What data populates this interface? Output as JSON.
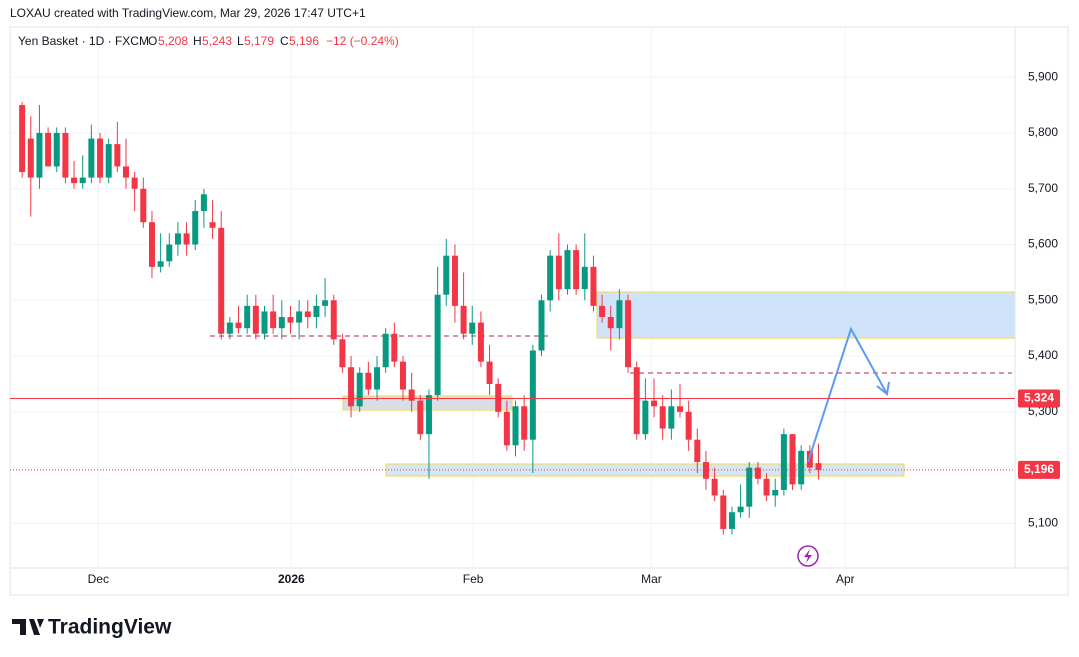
{
  "header": {
    "credit": "LOXAU created with TradingView.com, Mar 29, 2026 17:47 UTC+1"
  },
  "footer": {
    "brand": "TradingView"
  },
  "chart_data": {
    "type": "candlestick",
    "legend": {
      "symbol": "Yen Basket · 1D · FXCM",
      "open_label": "O",
      "open": "5,208",
      "high_label": "H",
      "high": "5,243",
      "low_label": "L",
      "low": "5,179",
      "close_label": "C",
      "close": "5,196",
      "change": "−12 (−0.24%)"
    },
    "up_color": "#089981",
    "down_color": "#f23645",
    "ohlc": [
      [
        5850,
        5855,
        5720,
        5730
      ],
      [
        5790,
        5830,
        5650,
        5720
      ],
      [
        5720,
        5850,
        5700,
        5800
      ],
      [
        5800,
        5810,
        5740,
        5740
      ],
      [
        5740,
        5810,
        5730,
        5800
      ],
      [
        5800,
        5810,
        5710,
        5720
      ],
      [
        5720,
        5750,
        5700,
        5710
      ],
      [
        5710,
        5760,
        5700,
        5720
      ],
      [
        5720,
        5815,
        5710,
        5790
      ],
      [
        5790,
        5800,
        5710,
        5720
      ],
      [
        5720,
        5790,
        5710,
        5780
      ],
      [
        5780,
        5820,
        5730,
        5740
      ],
      [
        5740,
        5790,
        5700,
        5720
      ],
      [
        5720,
        5730,
        5660,
        5700
      ],
      [
        5700,
        5720,
        5630,
        5640
      ],
      [
        5640,
        5660,
        5540,
        5560
      ],
      [
        5560,
        5620,
        5550,
        5570
      ],
      [
        5570,
        5620,
        5560,
        5600
      ],
      [
        5600,
        5640,
        5580,
        5620
      ],
      [
        5620,
        5640,
        5580,
        5600
      ],
      [
        5600,
        5680,
        5590,
        5660
      ],
      [
        5660,
        5700,
        5630,
        5690
      ],
      [
        5640,
        5680,
        5610,
        5630
      ],
      [
        5630,
        5660,
        5430,
        5440
      ],
      [
        5440,
        5470,
        5430,
        5460
      ],
      [
        5460,
        5490,
        5440,
        5450
      ],
      [
        5450,
        5510,
        5440,
        5490
      ],
      [
        5490,
        5510,
        5430,
        5440
      ],
      [
        5440,
        5490,
        5430,
        5480
      ],
      [
        5480,
        5510,
        5440,
        5450
      ],
      [
        5450,
        5500,
        5430,
        5470
      ],
      [
        5470,
        5490,
        5440,
        5460
      ],
      [
        5460,
        5500,
        5430,
        5480
      ],
      [
        5480,
        5500,
        5450,
        5470
      ],
      [
        5470,
        5510,
        5450,
        5490
      ],
      [
        5490,
        5540,
        5470,
        5500
      ],
      [
        5500,
        5510,
        5420,
        5430
      ],
      [
        5430,
        5440,
        5370,
        5380
      ],
      [
        5380,
        5400,
        5290,
        5310
      ],
      [
        5310,
        5380,
        5300,
        5370
      ],
      [
        5370,
        5390,
        5330,
        5340
      ],
      [
        5340,
        5400,
        5320,
        5380
      ],
      [
        5380,
        5450,
        5370,
        5440
      ],
      [
        5440,
        5460,
        5380,
        5390
      ],
      [
        5390,
        5400,
        5320,
        5340
      ],
      [
        5340,
        5370,
        5300,
        5320
      ],
      [
        5320,
        5330,
        5250,
        5260
      ],
      [
        5260,
        5340,
        5180,
        5330
      ],
      [
        5330,
        5560,
        5320,
        5510
      ],
      [
        5510,
        5610,
        5490,
        5580
      ],
      [
        5580,
        5600,
        5460,
        5490
      ],
      [
        5490,
        5550,
        5430,
        5440
      ],
      [
        5440,
        5490,
        5420,
        5460
      ],
      [
        5460,
        5480,
        5380,
        5390
      ],
      [
        5390,
        5420,
        5330,
        5350
      ],
      [
        5350,
        5360,
        5290,
        5300
      ],
      [
        5300,
        5320,
        5230,
        5240
      ],
      [
        5240,
        5320,
        5220,
        5310
      ],
      [
        5310,
        5330,
        5230,
        5250
      ],
      [
        5250,
        5420,
        5190,
        5410
      ],
      [
        5410,
        5510,
        5400,
        5500
      ],
      [
        5500,
        5590,
        5480,
        5580
      ],
      [
        5580,
        5620,
        5500,
        5520
      ],
      [
        5520,
        5600,
        5510,
        5590
      ],
      [
        5590,
        5600,
        5510,
        5520
      ],
      [
        5520,
        5620,
        5500,
        5560
      ],
      [
        5560,
        5580,
        5480,
        5490
      ],
      [
        5490,
        5510,
        5460,
        5470
      ],
      [
        5470,
        5490,
        5410,
        5450
      ],
      [
        5450,
        5520,
        5430,
        5500
      ],
      [
        5500,
        5510,
        5370,
        5380
      ],
      [
        5380,
        5390,
        5250,
        5260
      ],
      [
        5260,
        5360,
        5250,
        5320
      ],
      [
        5320,
        5360,
        5290,
        5310
      ],
      [
        5310,
        5330,
        5250,
        5270
      ],
      [
        5270,
        5340,
        5250,
        5310
      ],
      [
        5310,
        5350,
        5290,
        5300
      ],
      [
        5300,
        5320,
        5230,
        5250
      ],
      [
        5250,
        5270,
        5190,
        5210
      ],
      [
        5210,
        5230,
        5160,
        5180
      ],
      [
        5180,
        5200,
        5140,
        5150
      ],
      [
        5150,
        5160,
        5080,
        5090
      ],
      [
        5090,
        5130,
        5080,
        5120
      ],
      [
        5120,
        5170,
        5110,
        5130
      ],
      [
        5130,
        5210,
        5110,
        5200
      ],
      [
        5200,
        5210,
        5170,
        5180
      ],
      [
        5180,
        5190,
        5140,
        5150
      ],
      [
        5150,
        5180,
        5130,
        5160
      ],
      [
        5160,
        5270,
        5150,
        5260
      ],
      [
        5260,
        5260,
        5160,
        5170
      ],
      [
        5170,
        5240,
        5160,
        5230
      ],
      [
        5230,
        5240,
        5190,
        5200
      ],
      [
        5208,
        5243,
        5179,
        5196
      ]
    ],
    "xlim": [
      -1.4,
      114.7
    ],
    "xticks": [
      {
        "value": 8.8,
        "label": "Dec"
      },
      {
        "value": 31.1,
        "label": "2026"
      },
      {
        "value": 52.1,
        "label": "Feb"
      },
      {
        "value": 72.7,
        "label": "Mar"
      },
      {
        "value": 95.1,
        "label": "Apr"
      }
    ],
    "ylim": [
      5020,
      5990
    ],
    "yticks": [
      {
        "value": 5100,
        "label": "5,100"
      },
      {
        "value": 5200,
        "label": "5,200"
      },
      {
        "value": 5300,
        "label": "5,300"
      },
      {
        "value": 5400,
        "label": "5,400"
      },
      {
        "value": 5500,
        "label": "5,500"
      },
      {
        "value": 5600,
        "label": "5,600"
      },
      {
        "value": 5700,
        "label": "5,700"
      },
      {
        "value": 5800,
        "label": "5,800"
      },
      {
        "value": 5900,
        "label": "5,900"
      }
    ],
    "grid": true,
    "hline": {
      "value": 5324,
      "label": "5,324",
      "color": "#f23645"
    },
    "last_price": {
      "value": 5196,
      "label": "5,196",
      "color": "#f23645"
    }
  }
}
